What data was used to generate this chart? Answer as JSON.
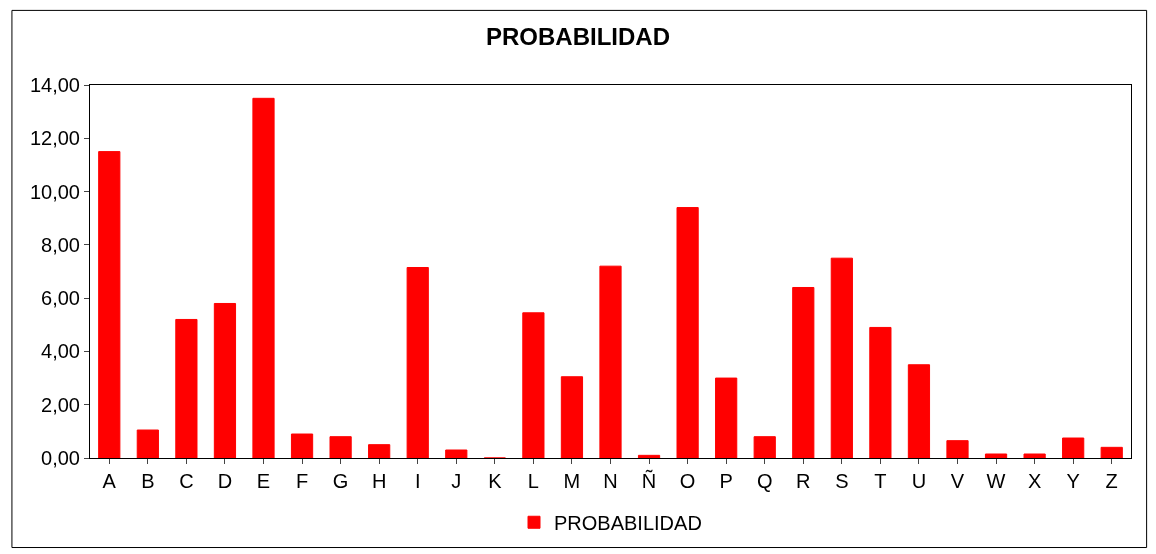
{
  "chart_data": {
    "type": "bar",
    "title": "PROBABILIDAD",
    "categories": [
      "A",
      "B",
      "C",
      "D",
      "E",
      "F",
      "G",
      "H",
      "I",
      "J",
      "K",
      "L",
      "M",
      "N",
      "Ñ",
      "O",
      "P",
      "Q",
      "R",
      "S",
      "T",
      "U",
      "V",
      "W",
      "X",
      "Y",
      "Z"
    ],
    "series": [
      {
        "name": "PROBABILIDAD",
        "color": "#ff0000",
        "values": [
          11.5,
          1.05,
          5.2,
          5.8,
          13.5,
          0.9,
          0.8,
          0.5,
          7.15,
          0.3,
          0.0,
          5.45,
          3.05,
          7.2,
          0.1,
          9.4,
          3.0,
          0.8,
          6.4,
          7.5,
          4.9,
          3.5,
          0.65,
          0.15,
          0.15,
          0.75,
          0.4
        ]
      }
    ],
    "ylim": [
      0,
      14
    ],
    "yticks": [
      {
        "value": 0,
        "label": "0,00"
      },
      {
        "value": 2,
        "label": "2,00"
      },
      {
        "value": 4,
        "label": "4,00"
      },
      {
        "value": 6,
        "label": "6,00"
      },
      {
        "value": 8,
        "label": "8,00"
      },
      {
        "value": 10,
        "label": "10,00"
      },
      {
        "value": 12,
        "label": "12,00"
      },
      {
        "value": 14,
        "label": "14,00"
      }
    ],
    "grid": false,
    "legend": "bottom"
  }
}
